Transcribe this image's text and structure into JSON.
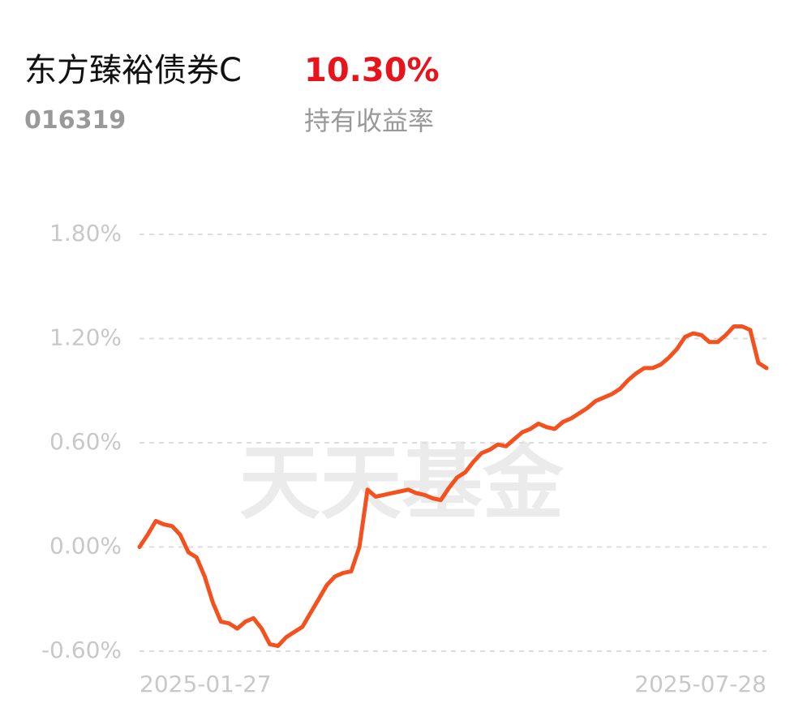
{
  "header": {
    "name": "东方臻裕债券C",
    "return": "10.30%",
    "code": "016319",
    "return_label": "持有收益率"
  },
  "chart_data": {
    "type": "line",
    "watermark": "天天基金",
    "categories": [
      "2025-01-27",
      null,
      null,
      null,
      null,
      null,
      null,
      null,
      null,
      null,
      null,
      null,
      null,
      null,
      null,
      null,
      null,
      null,
      null,
      null,
      null,
      null,
      null,
      null,
      null,
      null,
      null,
      null,
      null,
      null,
      null,
      null,
      null,
      null,
      null,
      null,
      null,
      null,
      null,
      null,
      null,
      null,
      null,
      null,
      null,
      null,
      null,
      null,
      null,
      null,
      null,
      null,
      null,
      null,
      null,
      null,
      null,
      null,
      null,
      null,
      null,
      null,
      null,
      null,
      null,
      null,
      null,
      null,
      null,
      null,
      null,
      null,
      null,
      null,
      null,
      null,
      null,
      "2025-07-28"
    ],
    "series": [
      {
        "color": "#f4511e",
        "values": [
          0,
          0.07,
          0.15,
          0.13,
          0.12,
          0.07,
          -0.03,
          -0.06,
          -0.17,
          -0.32,
          -0.43,
          -0.44,
          -0.47,
          -0.43,
          -0.41,
          -0.47,
          -0.56,
          -0.57,
          -0.52,
          -0.49,
          -0.46,
          -0.38,
          -0.3,
          -0.22,
          -0.17,
          -0.15,
          -0.14,
          0.0,
          0.33,
          0.29,
          0.3,
          0.31,
          0.32,
          0.33,
          0.31,
          0.3,
          0.28,
          0.27,
          0.34,
          0.4,
          0.43,
          0.49,
          0.54,
          0.56,
          0.59,
          0.58,
          0.62,
          0.66,
          0.68,
          0.71,
          0.69,
          0.68,
          0.72,
          0.74,
          0.77,
          0.8,
          0.84,
          0.86,
          0.88,
          0.91,
          0.96,
          1.0,
          1.03,
          1.03,
          1.05,
          1.09,
          1.14,
          1.21,
          1.23,
          1.22,
          1.18,
          1.18,
          1.22,
          1.27,
          1.27,
          1.25,
          1.06,
          1.03
        ]
      }
    ],
    "ylim": [
      -0.6,
      1.8
    ],
    "yticks": [
      {
        "value": -0.6,
        "label": "-0.60%"
      },
      {
        "value": 0,
        "label": "0.00%"
      },
      {
        "value": 0.6,
        "label": "0.60%"
      },
      {
        "value": 1.2,
        "label": "1.20%"
      },
      {
        "value": 1.8,
        "label": "1.80%"
      }
    ],
    "grid": true
  }
}
